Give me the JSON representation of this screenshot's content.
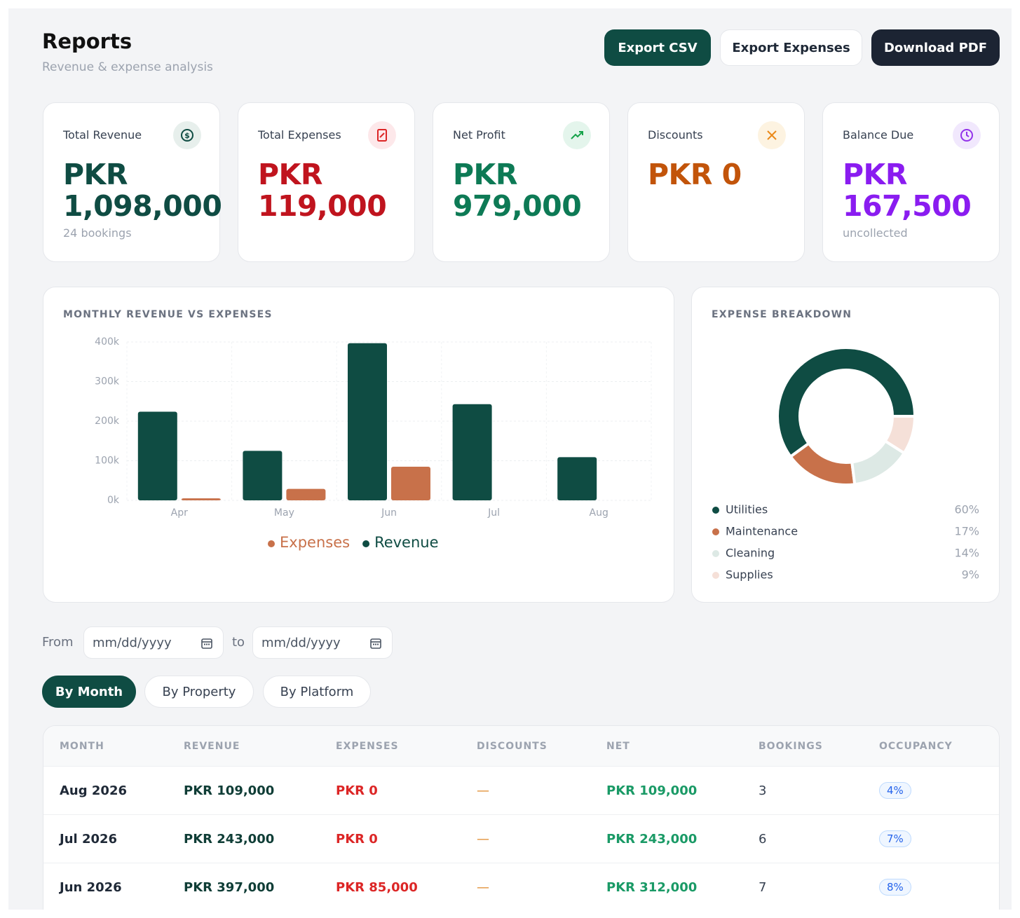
{
  "header": {
    "title": "Reports",
    "subtitle": "Revenue & expense analysis"
  },
  "actions": [
    "Export CSV",
    "Export Expenses",
    "Download PDF"
  ],
  "kpis": [
    {
      "label": "Total Revenue",
      "value": "PKR 1,098,000",
      "note": "24 bookings"
    },
    {
      "label": "Total Expenses",
      "value": "PKR 119,000"
    },
    {
      "label": "Net Profit",
      "value": "PKR 979,000"
    },
    {
      "label": "Discounts",
      "value": "PKR 0"
    },
    {
      "label": "Balance Due",
      "value": "PKR 167,500",
      "note": "uncollected"
    }
  ],
  "chart_data": [
    {
      "type": "bar",
      "title": "MONTHLY REVENUE VS EXPENSES",
      "categories": [
        "Apr",
        "May",
        "Jun",
        "Jul",
        "Aug"
      ],
      "series": [
        {
          "name": "Revenue",
          "color": "#0f4c43",
          "values": [
            224000,
            125000,
            397000,
            243000,
            109000
          ]
        },
        {
          "name": "Expenses",
          "color": "#c8714a",
          "values": [
            5000,
            29000,
            85000,
            0,
            0
          ]
        }
      ],
      "ylim": [
        0,
        400000
      ],
      "yticks": [
        {
          "value": 0,
          "label": "0k"
        },
        {
          "value": 100000,
          "label": "100k"
        },
        {
          "value": 200000,
          "label": "200k"
        },
        {
          "value": 300000,
          "label": "300k"
        },
        {
          "value": 400000,
          "label": "400k"
        }
      ],
      "grid": true
    },
    {
      "type": "donut",
      "title": "EXPENSE BREAKDOWN",
      "categories": [
        "Utilities",
        "Maintenance",
        "Cleaning",
        "Supplies"
      ],
      "values": [
        60,
        17,
        14,
        9
      ],
      "value_labels": [
        "60%",
        "17%",
        "14%",
        "9%"
      ],
      "colors": [
        "#0f4c43",
        "#c8714a",
        "#dde9e5",
        "#f5e0d8"
      ]
    }
  ],
  "filters": {
    "from": "From",
    "from_placeholder": "mm/dd/yyyy",
    "to": "to",
    "to_placeholder": "mm/dd/yyyy"
  },
  "tabs": [
    "By Month",
    "By Property",
    "By Platform"
  ],
  "table": {
    "columns": [
      "MONTH",
      "REVENUE",
      "EXPENSES",
      "DISCOUNTS",
      "NET",
      "BOOKINGS",
      "OCCUPANCY"
    ],
    "rows": [
      [
        "Aug 2026",
        "PKR 109,000",
        "PKR 0",
        "—",
        "PKR 109,000",
        "3",
        "4%"
      ],
      [
        "Jul 2026",
        "PKR 243,000",
        "PKR 0",
        "—",
        "PKR 243,000",
        "6",
        "7%"
      ],
      [
        "Jun 2026",
        "PKR 397,000",
        "PKR 85,000",
        "—",
        "PKR 312,000",
        "7",
        "8%"
      ]
    ]
  }
}
